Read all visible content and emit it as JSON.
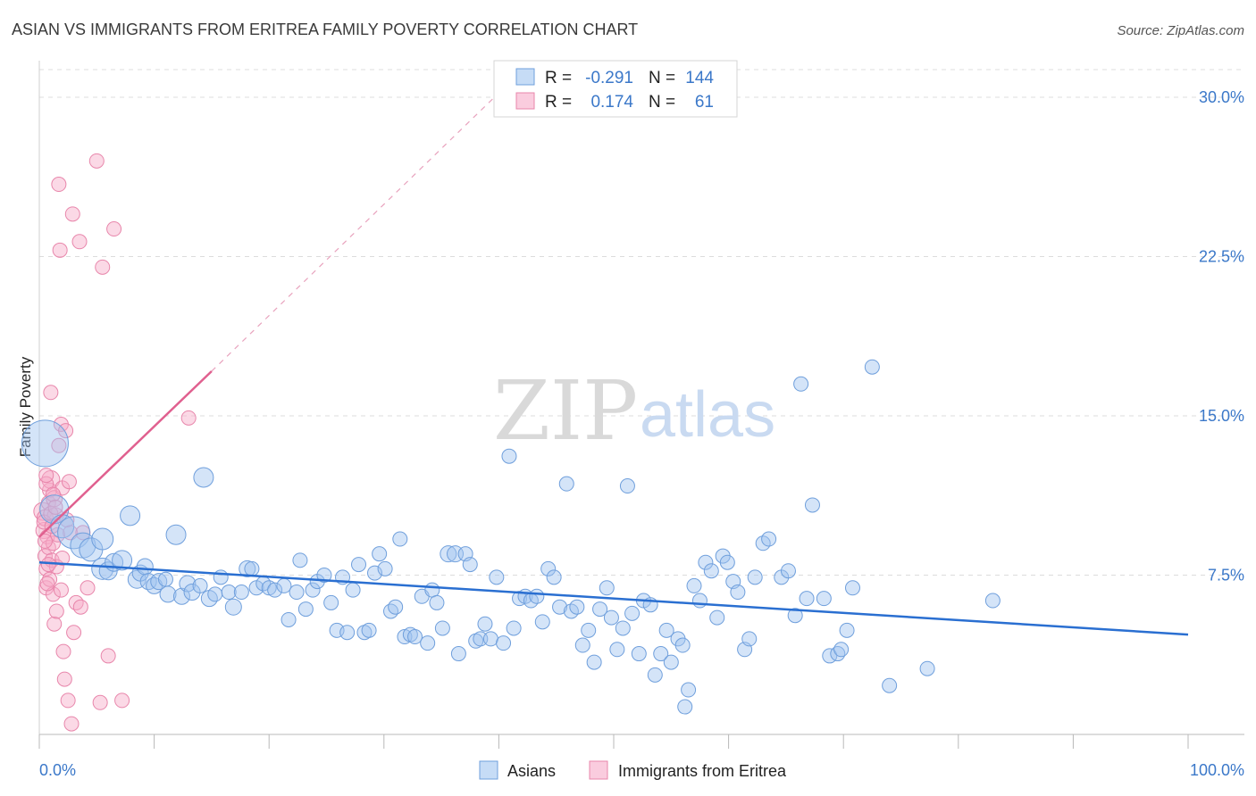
{
  "title": "ASIAN VS IMMIGRANTS FROM ERITREA FAMILY POVERTY CORRELATION CHART",
  "source": "Source: ZipAtlas.com",
  "watermark": {
    "part1": "ZIP",
    "part2": "atlas"
  },
  "legend": {
    "rows": [
      {
        "r_label": "R =",
        "r_value": "-0.291",
        "n_label": "N =",
        "n_value": "144"
      },
      {
        "r_label": "R =",
        "r_value": "0.174",
        "n_label": "N =",
        "n_value": "61"
      }
    ]
  },
  "bottom_legend": {
    "asians": "Asians",
    "eritrea": "Immigrants from Eritrea"
  },
  "colors": {
    "asian_fill": "rgba(160,196,240,0.45)",
    "asian_stroke": "#6f9fdc",
    "asian_line": "#2a6fd1",
    "eritrea_fill": "rgba(246,170,200,0.45)",
    "eritrea_stroke": "#e886ab",
    "eritrea_line": "#e0608f",
    "tick_text": "#3b78c9",
    "grid": "#dcdcdc"
  },
  "chart_data": {
    "type": "scatter",
    "title": "ASIAN VS IMMIGRANTS FROM ERITREA FAMILY POVERTY CORRELATION CHART",
    "xlabel": "",
    "ylabel": "Family Poverty",
    "xlim": [
      0,
      100
    ],
    "ylim": [
      0,
      31.3
    ],
    "x_tick_labels": [
      "0.0%",
      "100.0%"
    ],
    "y_ticks": [
      7.5,
      15.0,
      22.5,
      30.0
    ],
    "y_tick_labels": [
      "7.5%",
      "15.0%",
      "22.5%",
      "30.0%"
    ],
    "grid": true,
    "legend_placement": "top-center",
    "series": [
      {
        "name": "Asians",
        "points": [
          [
            0.5,
            13.7,
            26
          ],
          [
            1.3,
            10.6,
            16
          ],
          [
            2.0,
            9.8,
            13
          ],
          [
            3.0,
            9.5,
            18
          ],
          [
            3.8,
            8.9,
            14
          ],
          [
            4.5,
            8.7,
            13
          ],
          [
            5.5,
            9.2,
            12
          ],
          [
            5.5,
            7.8,
            12
          ],
          [
            6.0,
            7.7,
            10
          ],
          [
            6.5,
            8.1,
            10
          ],
          [
            7.2,
            8.2,
            11
          ],
          [
            7.9,
            10.3,
            11
          ],
          [
            8.5,
            7.3,
            10
          ],
          [
            8.8,
            7.6,
            9
          ],
          [
            9.2,
            7.9,
            9
          ],
          [
            9.5,
            7.2,
            9
          ],
          [
            10.0,
            7.0,
            9
          ],
          [
            10.4,
            7.2,
            9
          ],
          [
            11.0,
            7.3,
            8
          ],
          [
            11.2,
            6.6,
            9
          ],
          [
            11.9,
            9.4,
            11
          ],
          [
            12.4,
            6.5,
            9
          ],
          [
            12.9,
            7.1,
            9
          ],
          [
            13.3,
            6.7,
            9
          ],
          [
            14.0,
            7.0,
            8
          ],
          [
            14.3,
            12.1,
            11
          ],
          [
            14.8,
            6.4,
            9
          ],
          [
            15.3,
            6.6,
            8
          ],
          [
            15.8,
            7.4,
            8
          ],
          [
            16.5,
            6.7,
            8
          ],
          [
            16.9,
            6.0,
            9
          ],
          [
            17.6,
            6.7,
            8
          ],
          [
            18.1,
            7.8,
            9
          ],
          [
            18.5,
            7.8,
            8
          ],
          [
            18.9,
            6.9,
            8
          ],
          [
            19.5,
            7.1,
            8
          ],
          [
            20.0,
            6.9,
            8
          ],
          [
            20.5,
            6.8,
            8
          ],
          [
            21.3,
            7.0,
            8
          ],
          [
            21.7,
            5.4,
            8
          ],
          [
            22.4,
            6.7,
            8
          ],
          [
            22.7,
            8.2,
            8
          ],
          [
            23.2,
            5.9,
            8
          ],
          [
            23.8,
            6.8,
            8
          ],
          [
            24.2,
            7.2,
            8
          ],
          [
            24.8,
            7.5,
            8
          ],
          [
            25.4,
            6.2,
            8
          ],
          [
            25.9,
            4.9,
            8
          ],
          [
            26.4,
            7.4,
            8
          ],
          [
            26.8,
            4.8,
            8
          ],
          [
            27.3,
            6.8,
            8
          ],
          [
            27.8,
            8.0,
            8
          ],
          [
            28.3,
            4.8,
            8
          ],
          [
            28.7,
            4.9,
            8
          ],
          [
            29.2,
            7.6,
            8
          ],
          [
            29.6,
            8.5,
            8
          ],
          [
            30.1,
            7.8,
            8
          ],
          [
            30.6,
            5.8,
            8
          ],
          [
            31.0,
            6.0,
            8
          ],
          [
            31.4,
            9.2,
            8
          ],
          [
            31.8,
            4.6,
            8
          ],
          [
            32.3,
            4.7,
            8
          ],
          [
            32.7,
            4.6,
            8
          ],
          [
            33.3,
            6.5,
            8
          ],
          [
            33.8,
            4.3,
            8
          ],
          [
            34.2,
            6.8,
            8
          ],
          [
            34.6,
            6.2,
            8
          ],
          [
            35.1,
            5.0,
            8
          ],
          [
            35.6,
            8.5,
            9
          ],
          [
            36.2,
            8.5,
            9
          ],
          [
            36.5,
            3.8,
            8
          ],
          [
            37.1,
            8.5,
            8
          ],
          [
            37.5,
            8.0,
            8
          ],
          [
            38.0,
            4.4,
            8
          ],
          [
            38.4,
            4.5,
            8
          ],
          [
            38.8,
            5.2,
            8
          ],
          [
            39.3,
            4.5,
            8
          ],
          [
            39.8,
            7.4,
            8
          ],
          [
            40.4,
            4.3,
            8
          ],
          [
            40.9,
            13.1,
            8
          ],
          [
            41.3,
            5.0,
            8
          ],
          [
            41.8,
            6.4,
            8
          ],
          [
            42.3,
            6.5,
            8
          ],
          [
            42.8,
            6.3,
            8
          ],
          [
            43.3,
            6.5,
            8
          ],
          [
            43.8,
            5.3,
            8
          ],
          [
            44.3,
            7.8,
            8
          ],
          [
            44.8,
            7.4,
            8
          ],
          [
            45.3,
            6.0,
            8
          ],
          [
            45.9,
            11.8,
            8
          ],
          [
            46.3,
            5.8,
            8
          ],
          [
            46.8,
            6.0,
            8
          ],
          [
            47.3,
            4.2,
            8
          ],
          [
            47.8,
            4.9,
            8
          ],
          [
            48.3,
            3.4,
            8
          ],
          [
            48.8,
            5.9,
            8
          ],
          [
            49.4,
            6.9,
            8
          ],
          [
            49.8,
            5.5,
            8
          ],
          [
            50.3,
            4.0,
            8
          ],
          [
            50.8,
            5.0,
            8
          ],
          [
            51.2,
            11.7,
            8
          ],
          [
            51.6,
            5.7,
            8
          ],
          [
            52.2,
            3.8,
            8
          ],
          [
            52.6,
            6.3,
            8
          ],
          [
            53.2,
            6.1,
            8
          ],
          [
            53.6,
            2.8,
            8
          ],
          [
            54.1,
            3.8,
            8
          ],
          [
            54.6,
            4.9,
            8
          ],
          [
            55.0,
            3.4,
            8
          ],
          [
            55.6,
            4.5,
            8
          ],
          [
            56.0,
            4.2,
            8
          ],
          [
            56.5,
            2.1,
            8
          ],
          [
            56.2,
            1.3,
            8
          ],
          [
            57.0,
            7.0,
            8
          ],
          [
            57.5,
            6.3,
            8
          ],
          [
            58.0,
            8.1,
            8
          ],
          [
            58.5,
            7.7,
            8
          ],
          [
            59.0,
            5.5,
            8
          ],
          [
            59.5,
            8.4,
            8
          ],
          [
            59.9,
            8.1,
            8
          ],
          [
            60.4,
            7.2,
            8
          ],
          [
            60.8,
            6.7,
            8
          ],
          [
            61.4,
            4.0,
            8
          ],
          [
            61.8,
            4.5,
            8
          ],
          [
            62.3,
            7.4,
            8
          ],
          [
            63.0,
            9.0,
            8
          ],
          [
            63.5,
            9.2,
            8
          ],
          [
            64.6,
            7.4,
            8
          ],
          [
            65.2,
            7.7,
            8
          ],
          [
            65.8,
            5.6,
            8
          ],
          [
            66.3,
            16.5,
            8
          ],
          [
            66.8,
            6.4,
            8
          ],
          [
            67.3,
            10.8,
            8
          ],
          [
            68.3,
            6.4,
            8
          ],
          [
            68.8,
            3.7,
            8
          ],
          [
            69.5,
            3.8,
            8
          ],
          [
            69.8,
            4.0,
            8
          ],
          [
            70.3,
            4.9,
            8
          ],
          [
            70.8,
            6.9,
            8
          ],
          [
            72.5,
            17.3,
            8
          ],
          [
            74.0,
            2.3,
            8
          ],
          [
            77.3,
            3.1,
            8
          ],
          [
            83.0,
            6.3,
            8
          ]
        ]
      },
      {
        "name": "Immigrants from Eritrea",
        "points": [
          [
            0.3,
            10.5,
            10
          ],
          [
            0.4,
            9.6,
            9
          ],
          [
            0.5,
            10.2,
            9
          ],
          [
            0.5,
            8.4,
            8
          ],
          [
            0.6,
            7.8,
            8
          ],
          [
            0.6,
            6.9,
            8
          ],
          [
            0.7,
            9.3,
            8
          ],
          [
            0.8,
            8.8,
            8
          ],
          [
            0.8,
            10.9,
            8
          ],
          [
            0.9,
            7.3,
            8
          ],
          [
            0.9,
            11.5,
            8
          ],
          [
            1.0,
            12.0,
            10
          ],
          [
            1.0,
            16.1,
            8
          ],
          [
            1.1,
            8.2,
            8
          ],
          [
            1.2,
            9.0,
            8
          ],
          [
            1.2,
            6.6,
            8
          ],
          [
            1.3,
            5.2,
            8
          ],
          [
            1.3,
            11.1,
            9
          ],
          [
            1.4,
            10.3,
            9
          ],
          [
            1.5,
            7.9,
            8
          ],
          [
            1.5,
            5.8,
            8
          ],
          [
            1.6,
            9.4,
            8
          ],
          [
            1.7,
            13.6,
            8
          ],
          [
            1.7,
            25.9,
            8
          ],
          [
            1.8,
            22.8,
            8
          ],
          [
            1.9,
            14.6,
            8
          ],
          [
            1.9,
            6.8,
            8
          ],
          [
            2.0,
            11.6,
            8
          ],
          [
            2.0,
            8.3,
            8
          ],
          [
            2.1,
            3.9,
            8
          ],
          [
            2.2,
            2.6,
            8
          ],
          [
            2.3,
            14.3,
            8
          ],
          [
            2.4,
            10.1,
            8
          ],
          [
            2.5,
            1.6,
            8
          ],
          [
            2.6,
            11.9,
            8
          ],
          [
            2.7,
            9.5,
            8
          ],
          [
            2.8,
            0.5,
            8
          ],
          [
            2.9,
            24.5,
            8
          ],
          [
            3.0,
            4.8,
            8
          ],
          [
            3.2,
            6.2,
            8
          ],
          [
            3.5,
            23.2,
            8
          ],
          [
            3.6,
            6.0,
            8
          ],
          [
            3.8,
            9.5,
            8
          ],
          [
            4.2,
            6.9,
            8
          ],
          [
            5.0,
            27.0,
            8
          ],
          [
            5.5,
            22.0,
            8
          ],
          [
            5.3,
            1.5,
            8
          ],
          [
            6.0,
            3.7,
            8
          ],
          [
            6.5,
            23.8,
            8
          ],
          [
            7.2,
            1.6,
            8
          ],
          [
            13.0,
            14.9,
            8
          ],
          [
            0.6,
            11.8,
            8
          ],
          [
            0.7,
            7.1,
            8
          ],
          [
            0.4,
            10.0,
            8
          ],
          [
            0.5,
            9.1,
            8
          ],
          [
            0.6,
            12.2,
            8
          ],
          [
            0.8,
            8.0,
            8
          ],
          [
            1.0,
            10.4,
            8
          ],
          [
            1.1,
            9.8,
            8
          ],
          [
            1.2,
            11.3,
            8
          ],
          [
            1.4,
            10.7,
            8
          ]
        ]
      }
    ],
    "trendlines": [
      {
        "series": "Asians",
        "x": [
          0,
          100
        ],
        "y": [
          8.1,
          4.7
        ]
      },
      {
        "series": "Immigrants from Eritrea",
        "x": [
          0,
          15
        ],
        "y": [
          9.3,
          17.1
        ],
        "dashed_extension_to": [
          40,
          30.2
        ]
      }
    ]
  }
}
